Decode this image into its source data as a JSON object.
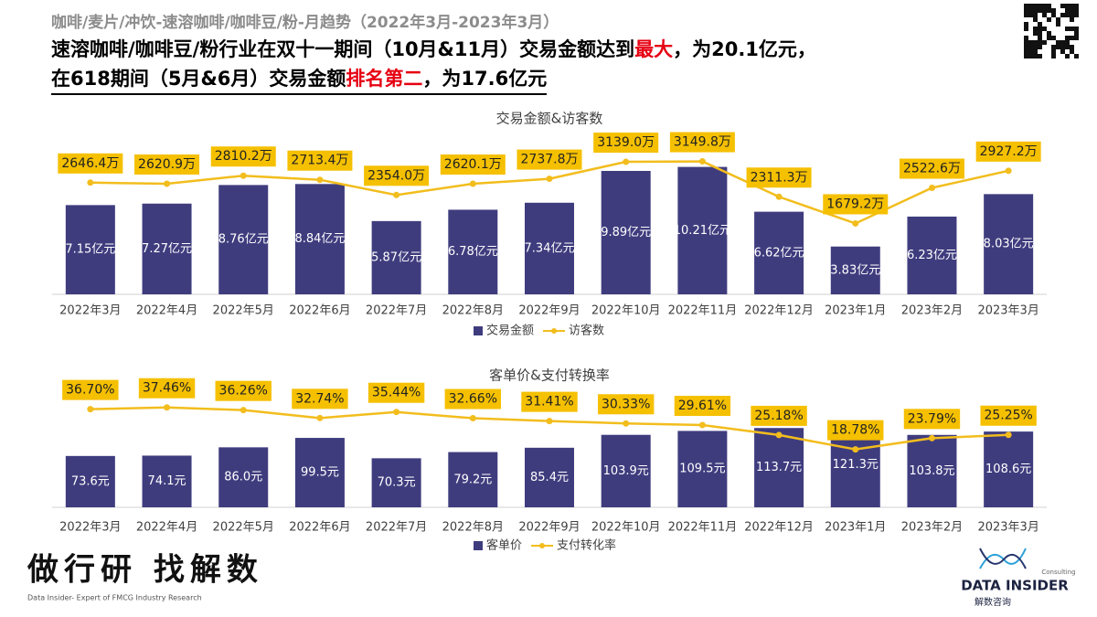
{
  "header": {
    "subtitle": "咖啡/麦片/冲饮-速溶咖啡/咖啡豆/粉-月趋势（2022年3月-2023年3月）",
    "lines": [
      [
        "速溶咖啡/咖啡豆/粉行业在双十一期间（10月&11月）交易金额达到",
        "最大",
        "，为20.1亿元，"
      ],
      [
        "在618期间（5月&6月）交易金额",
        "排名第二",
        "，为17.6亿元"
      ]
    ]
  },
  "chart_data": [
    {
      "type": "bar",
      "title": "交易金额&访客数",
      "categories": [
        "2022年3月",
        "2022年4月",
        "2022年5月",
        "2022年6月",
        "2022年7月",
        "2022年8月",
        "2022年9月",
        "2022年10月",
        "2022年11月",
        "2022年12月",
        "2023年1月",
        "2023年2月",
        "2023年3月"
      ],
      "ylim": [
        0,
        11.5
      ],
      "y2lim": [
        0,
        3400
      ],
      "series": [
        {
          "name": "交易金额",
          "type": "bar",
          "color": "#3f3c7e",
          "values": [
            7.15,
            7.27,
            8.76,
            8.84,
            5.87,
            6.78,
            7.34,
            9.89,
            10.21,
            6.62,
            3.83,
            6.23,
            8.03
          ],
          "value_labels": [
            "7.15亿元",
            "7.27亿元",
            "8.76亿元",
            "8.84亿元",
            "5.87亿元",
            "6.78亿元",
            "7.34亿元",
            "9.89亿元",
            "10.21亿元",
            "6.62亿元",
            "3.83亿元",
            "6.23亿元",
            "8.03亿元"
          ]
        },
        {
          "name": "访客数",
          "type": "line",
          "axis": "y2",
          "color": "#f2bd1d",
          "values": [
            2646.4,
            2620.9,
            2810.2,
            2713.4,
            2354.0,
            2620.1,
            2737.8,
            3139.0,
            3149.8,
            2311.3,
            1679.2,
            2522.6,
            2927.2
          ],
          "value_labels": [
            "2646.4万",
            "2620.9万",
            "2810.2万",
            "2713.4万",
            "2354.0万",
            "2620.1万",
            "2737.8万",
            "3139.0万",
            "3149.8万",
            "2311.3万",
            "1679.2万",
            "2522.6万",
            "2927.2万"
          ]
        }
      ]
    },
    {
      "type": "bar",
      "title": "客单价&支付转换率",
      "categories": [
        "2022年3月",
        "2022年4月",
        "2022年5月",
        "2022年6月",
        "2022年7月",
        "2022年8月",
        "2022年9月",
        "2022年10月",
        "2022年11月",
        "2022年12月",
        "2023年1月",
        "2023年2月",
        "2023年3月"
      ],
      "ylim": [
        0,
        190
      ],
      "y2lim": [
        -7,
        52
      ],
      "series": [
        {
          "name": "客单价",
          "type": "bar",
          "color": "#3f3c7e",
          "values": [
            73.6,
            74.1,
            86.0,
            99.5,
            70.3,
            79.2,
            85.4,
            103.9,
            109.5,
            113.7,
            121.3,
            103.8,
            108.6
          ],
          "value_labels": [
            "73.6元",
            "74.1元",
            "86.0元",
            "99.5元",
            "70.3元",
            "79.2元",
            "85.4元",
            "103.9元",
            "109.5元",
            "113.7元",
            "121.3元",
            "103.8元",
            "108.6元"
          ]
        },
        {
          "name": "支付转化率",
          "type": "line",
          "axis": "y2",
          "color": "#f2bd1d",
          "values": [
            36.7,
            37.46,
            36.26,
            32.74,
            35.44,
            32.66,
            31.41,
            30.33,
            29.61,
            25.18,
            18.78,
            23.79,
            25.25
          ],
          "value_labels": [
            "36.70%",
            "37.46%",
            "36.26%",
            "32.74%",
            "35.44%",
            "32.66%",
            "31.41%",
            "30.33%",
            "29.61%",
            "25.18%",
            "18.78%",
            "23.79%",
            "25.25%"
          ]
        }
      ]
    }
  ],
  "footer": {
    "slogan": "做行研 找解数",
    "tagline": "Data Insider- Expert of FMCG Industry Research",
    "logo": "DATA INSIDER",
    "logo_sub": "解数咨询",
    "logo_tag": "Consulting"
  }
}
